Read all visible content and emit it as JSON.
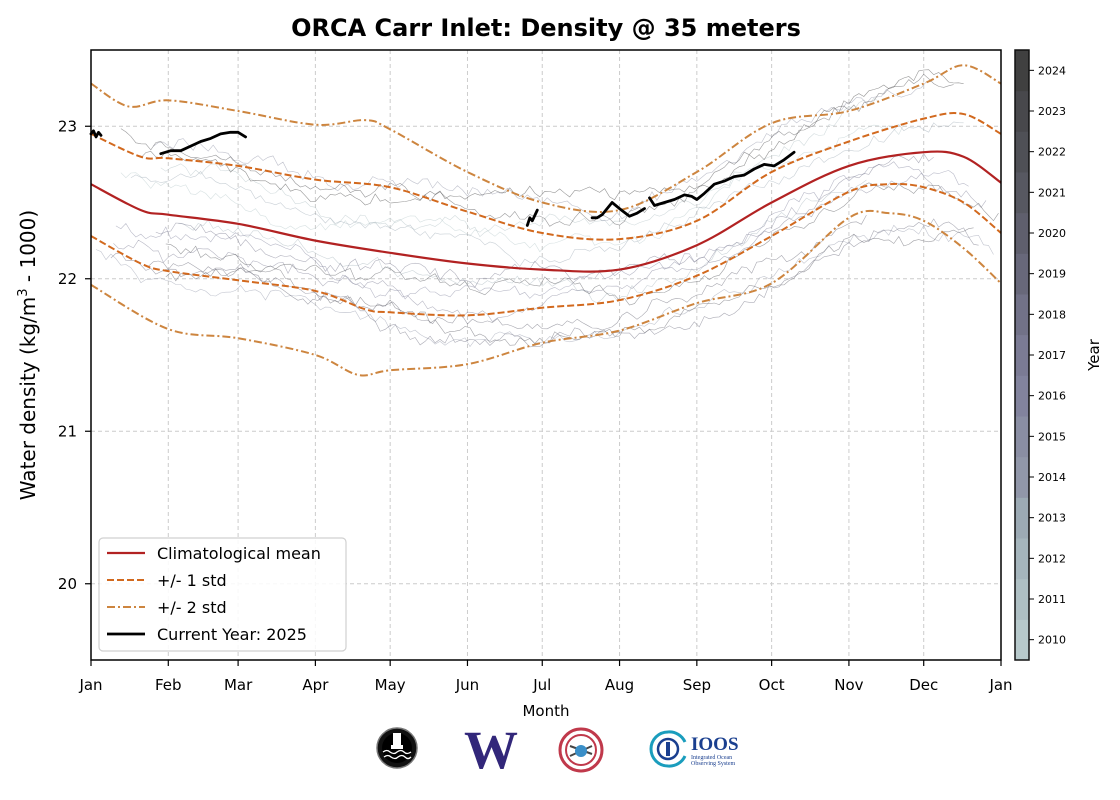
{
  "chart_data": {
    "type": "line",
    "title": "ORCA Carr Inlet: Density @ 35 meters",
    "xlabel": "Month",
    "ylabel": "Water density (kg/m3 - 1000)",
    "ylabel_main": "Water density (kg/m",
    "ylabel_sup": "3",
    "ylabel_tail": " - 1000)",
    "x_unit": "day of year",
    "xlim": [
      0,
      365
    ],
    "ylim": [
      19.5,
      23.5
    ],
    "grid": true,
    "x_ticks": [
      {
        "label": "Jan",
        "day": 0
      },
      {
        "label": "Feb",
        "day": 31
      },
      {
        "label": "Mar",
        "day": 59
      },
      {
        "label": "Apr",
        "day": 90
      },
      {
        "label": "May",
        "day": 120
      },
      {
        "label": "Jun",
        "day": 151
      },
      {
        "label": "Jul",
        "day": 181
      },
      {
        "label": "Aug",
        "day": 212
      },
      {
        "label": "Sep",
        "day": 243
      },
      {
        "label": "Oct",
        "day": 273
      },
      {
        "label": "Nov",
        "day": 304
      },
      {
        "label": "Dec",
        "day": 334
      },
      {
        "label": "Jan",
        "day": 365
      }
    ],
    "y_ticks": [
      20,
      21,
      22,
      23
    ],
    "legend_position": "lower-left",
    "series": [
      {
        "name": "Climatological mean",
        "style": "solid",
        "color": "#b22222",
        "x": [
          0,
          20,
          31,
          59,
          90,
          120,
          151,
          181,
          212,
          243,
          273,
          304,
          334,
          350,
          365
        ],
        "values": [
          22.62,
          22.45,
          22.42,
          22.36,
          22.25,
          22.17,
          22.1,
          22.06,
          22.06,
          22.22,
          22.5,
          22.74,
          22.83,
          22.8,
          22.63
        ]
      },
      {
        "name": "+1 std",
        "legend": "+/- 1 std",
        "style": "dashed",
        "color": "#d2691e",
        "x": [
          0,
          20,
          31,
          59,
          90,
          120,
          151,
          181,
          212,
          243,
          273,
          304,
          334,
          350,
          365
        ],
        "values": [
          22.95,
          22.8,
          22.79,
          22.74,
          22.65,
          22.6,
          22.44,
          22.3,
          22.26,
          22.38,
          22.7,
          22.9,
          23.05,
          23.08,
          22.95
        ]
      },
      {
        "name": "-1 std",
        "style": "dashed",
        "color": "#d2691e",
        "x": [
          0,
          20,
          31,
          59,
          90,
          110,
          120,
          151,
          181,
          212,
          243,
          273,
          304,
          320,
          334,
          350,
          365
        ],
        "values": [
          22.28,
          22.1,
          22.05,
          21.99,
          21.92,
          21.8,
          21.78,
          21.76,
          21.81,
          21.86,
          22.02,
          22.28,
          22.57,
          22.62,
          22.6,
          22.5,
          22.3
        ]
      },
      {
        "name": "+2 std",
        "legend": "+/- 2 std",
        "style": "dashdot",
        "color": "#cd853f",
        "x": [
          0,
          15,
          31,
          59,
          90,
          110,
          120,
          151,
          181,
          212,
          243,
          273,
          304,
          334,
          350,
          365
        ],
        "values": [
          23.28,
          23.13,
          23.17,
          23.1,
          23.01,
          23.04,
          22.98,
          22.7,
          22.5,
          22.45,
          22.7,
          23.02,
          23.1,
          23.28,
          23.4,
          23.28
        ]
      },
      {
        "name": "-2 std",
        "style": "dashdot",
        "color": "#cd853f",
        "x": [
          0,
          31,
          59,
          90,
          107,
          120,
          151,
          181,
          212,
          243,
          273,
          304,
          320,
          334,
          350,
          365
        ],
        "values": [
          21.96,
          21.67,
          21.61,
          21.5,
          21.37,
          21.4,
          21.44,
          21.58,
          21.66,
          21.84,
          21.97,
          22.4,
          22.43,
          22.38,
          22.2,
          21.97
        ]
      },
      {
        "name": "Current Year: 2025",
        "style": "solid",
        "color": "#000000",
        "segments": [
          {
            "x": [
              0,
              1,
              2,
              3,
              4
            ],
            "values": [
              22.95,
              22.97,
              22.93,
              22.96,
              22.94
            ]
          },
          {
            "x": [
              28,
              32,
              36,
              40,
              44,
              48,
              52,
              56,
              59,
              62
            ],
            "values": [
              22.82,
              22.84,
              22.84,
              22.87,
              22.9,
              22.92,
              22.95,
              22.96,
              22.96,
              22.93
            ]
          },
          {
            "x": [
              175,
              176,
              177,
              179
            ],
            "values": [
              22.35,
              22.4,
              22.38,
              22.45
            ]
          },
          {
            "x": [
              201,
              203,
              205,
              209,
              212,
              216,
              219,
              222
            ],
            "values": [
              22.4,
              22.4,
              22.42,
              22.5,
              22.46,
              22.41,
              22.43,
              22.46
            ]
          },
          {
            "x": [
              224,
              226,
              230,
              234,
              238,
              241,
              243,
              246,
              250,
              254,
              258,
              262,
              266,
              270,
              274,
              278,
              282
            ],
            "values": [
              22.53,
              22.48,
              22.5,
              22.52,
              22.55,
              22.54,
              22.52,
              22.56,
              22.62,
              22.64,
              22.67,
              22.68,
              22.72,
              22.75,
              22.74,
              22.78,
              22.83
            ]
          }
        ]
      }
    ],
    "historical_years": [
      2010,
      2011,
      2012,
      2013,
      2014,
      2015,
      2016,
      2017,
      2018,
      2019,
      2020,
      2021,
      2022,
      2023,
      2024
    ],
    "colorbar": {
      "label": "Year",
      "ticks": [
        "2010",
        "2011",
        "2012",
        "2013",
        "2014",
        "2015",
        "2016",
        "2017",
        "2018",
        "2019",
        "2020",
        "2021",
        "2022",
        "2023",
        "2024"
      ],
      "colors": [
        "#b7c9cb",
        "#aebfc3",
        "#a5b5bc",
        "#9caab4",
        "#9197a9",
        "#8a8ea3",
        "#82839d",
        "#7b7b94",
        "#727288",
        "#68687a",
        "#5f5f6d",
        "#575861",
        "#4f5056",
        "#48484c",
        "#404040"
      ]
    }
  },
  "logos": [
    {
      "name": "nanoos-buoy-logo"
    },
    {
      "name": "uw-w-logo",
      "text": "W"
    },
    {
      "name": "salish-logo"
    },
    {
      "name": "ioos-logo",
      "text": "IOOS",
      "subtext1": "Integrated Ocean",
      "subtext2": "Observing System"
    }
  ],
  "colors": {
    "mean": "#b22222",
    "std1": "#d2691e",
    "std2": "#cd853f",
    "current": "#000000",
    "uw_purple": "#32277a",
    "ioos_blue": "#1a3f8f",
    "ioos_teal": "#1a9dbd"
  }
}
